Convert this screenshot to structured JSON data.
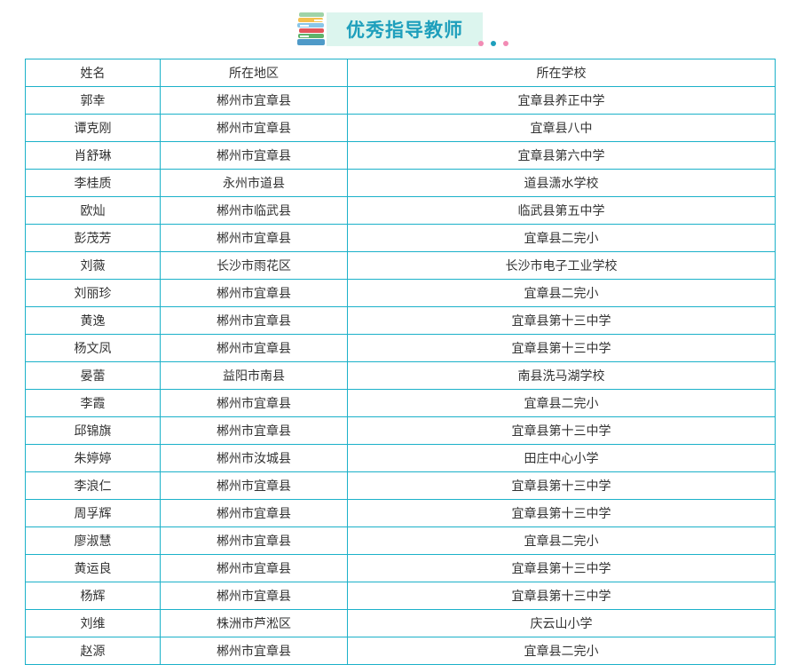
{
  "header": {
    "title": "优秀指导教师",
    "icon": "books-icon",
    "colors": {
      "accent": "#1e9fbc",
      "box": "#dcf5ee",
      "border": "#1bb1c9"
    }
  },
  "table": {
    "columns": [
      "姓名",
      "所在地区",
      "所在学校"
    ],
    "rows": [
      [
        "郭幸",
        "郴州市宜章县",
        "宜章县养正中学"
      ],
      [
        "谭克刚",
        "郴州市宜章县",
        "宜章县八中"
      ],
      [
        "肖舒琳",
        "郴州市宜章县",
        "宜章县第六中学"
      ],
      [
        "李桂质",
        "永州市道县",
        "道县潇水学校"
      ],
      [
        "欧灿",
        "郴州市临武县",
        "临武县第五中学"
      ],
      [
        "彭茂芳",
        "郴州市宜章县",
        "宜章县二完小"
      ],
      [
        "刘薇",
        "长沙市雨花区",
        "长沙市电子工业学校"
      ],
      [
        "刘丽珍",
        "郴州市宜章县",
        "宜章县二完小"
      ],
      [
        "黄逸",
        "郴州市宜章县",
        "宜章县第十三中学"
      ],
      [
        "杨文凤",
        "郴州市宜章县",
        "宜章县第十三中学"
      ],
      [
        "晏蕾",
        "益阳市南县",
        "南县洗马湖学校"
      ],
      [
        "李霞",
        "郴州市宜章县",
        "宜章县二完小"
      ],
      [
        "邱锦旗",
        "郴州市宜章县",
        "宜章县第十三中学"
      ],
      [
        "朱婷婷",
        "郴州市汝城县",
        "田庄中心小学"
      ],
      [
        "李浪仁",
        "郴州市宜章县",
        "宜章县第十三中学"
      ],
      [
        "周孚辉",
        "郴州市宜章县",
        "宜章县第十三中学"
      ],
      [
        "廖淑慧",
        "郴州市宜章县",
        "宜章县二完小"
      ],
      [
        "黄运良",
        "郴州市宜章县",
        "宜章县第十三中学"
      ],
      [
        "杨辉",
        "郴州市宜章县",
        "宜章县第十三中学"
      ],
      [
        "刘维",
        "株洲市芦淞区",
        "庆云山小学"
      ],
      [
        "赵源",
        "郴州市宜章县",
        "宜章县二完小"
      ]
    ]
  }
}
